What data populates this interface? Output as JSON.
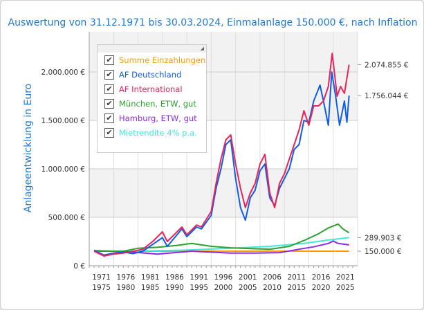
{
  "title": "Auswertung von 31.12.1971 bis 30.03.2024, Einmalanlage 150.000 €, nach Inflation",
  "chart_data": {
    "type": "line",
    "title": "Auswertung von 31.12.1971 bis 30.03.2024, Einmalanlage 150.000 €, nach Inflation",
    "ylabel": "Anlageentwicklung  in Euro",
    "ylim": [
      0,
      2250000
    ],
    "yticks": [
      {
        "v": 0,
        "label": "0 €"
      },
      {
        "v": 500000,
        "label": "500.000 €"
      },
      {
        "v": 1000000,
        "label": "1.000.000 €"
      },
      {
        "v": 1500000,
        "label": "1.500.000 €"
      },
      {
        "v": 2000000,
        "label": "2.000.000 €"
      }
    ],
    "xticks": [
      [
        "1971",
        "1975"
      ],
      [
        "1976",
        "1980"
      ],
      [
        "1981",
        "1985"
      ],
      [
        "1986",
        "1990"
      ],
      [
        "1991",
        "1995"
      ],
      [
        "1996",
        "2000"
      ],
      [
        "2001",
        "2005"
      ],
      [
        "2006",
        "2010"
      ],
      [
        "2011",
        "2015"
      ],
      [
        "2016",
        "2020"
      ],
      [
        "2021",
        "2025"
      ]
    ],
    "legend_placement": "top-left",
    "end_labels": [
      {
        "v": 2074855,
        "label": "2.074.855 €"
      },
      {
        "v": 1756044,
        "label": "1.756.044 €"
      },
      {
        "v": 289903,
        "label": "289.903 €"
      },
      {
        "v": 150000,
        "label": "150.000 €"
      }
    ],
    "series": [
      {
        "name": "Summe Einzahlungen",
        "color": "#ff9a00",
        "points": [
          [
            1972,
            150000
          ],
          [
            2024.25,
            150000
          ]
        ]
      },
      {
        "name": "Mietrendite 4% p.a.",
        "color": "#40e8d8",
        "points": [
          [
            1972,
            150000
          ],
          [
            1980,
            150000
          ],
          [
            1990,
            160000
          ],
          [
            2000,
            180000
          ],
          [
            2008,
            200000
          ],
          [
            2015,
            230000
          ],
          [
            2020,
            265000
          ],
          [
            2024.25,
            289903
          ]
        ]
      },
      {
        "name": "Hamburg, ETW, gut",
        "color": "#8a2be2",
        "points": [
          [
            1972,
            155000
          ],
          [
            1976,
            150000
          ],
          [
            1980,
            140000
          ],
          [
            1985,
            120000
          ],
          [
            1992,
            150000
          ],
          [
            1996,
            140000
          ],
          [
            2000,
            130000
          ],
          [
            2005,
            130000
          ],
          [
            2010,
            135000
          ],
          [
            2014,
            170000
          ],
          [
            2017,
            195000
          ],
          [
            2020,
            230000
          ],
          [
            2021,
            255000
          ],
          [
            2022,
            230000
          ],
          [
            2024.25,
            215000
          ]
        ]
      },
      {
        "name": "München, ETW, gut",
        "color": "#2ca02c",
        "points": [
          [
            1972,
            150000
          ],
          [
            1978,
            150000
          ],
          [
            1981,
            180000
          ],
          [
            1985,
            190000
          ],
          [
            1989,
            210000
          ],
          [
            1992,
            230000
          ],
          [
            1996,
            200000
          ],
          [
            2000,
            185000
          ],
          [
            2005,
            175000
          ],
          [
            2008,
            170000
          ],
          [
            2012,
            200000
          ],
          [
            2015,
            260000
          ],
          [
            2018,
            330000
          ],
          [
            2020,
            390000
          ],
          [
            2022,
            430000
          ],
          [
            2023,
            380000
          ],
          [
            2024.25,
            340000
          ]
        ]
      },
      {
        "name": "AF Deutschland",
        "color": "#0f5ce6",
        "points": [
          [
            1972,
            160000
          ],
          [
            1974,
            110000
          ],
          [
            1976,
            130000
          ],
          [
            1978,
            140000
          ],
          [
            1980,
            125000
          ],
          [
            1982,
            150000
          ],
          [
            1984,
            220000
          ],
          [
            1986,
            290000
          ],
          [
            1987,
            200000
          ],
          [
            1988,
            260000
          ],
          [
            1990,
            380000
          ],
          [
            1991,
            300000
          ],
          [
            1993,
            400000
          ],
          [
            1994,
            380000
          ],
          [
            1996,
            520000
          ],
          [
            1997,
            800000
          ],
          [
            1998,
            1000000
          ],
          [
            1999,
            1250000
          ],
          [
            2000,
            1300000
          ],
          [
            2001,
            900000
          ],
          [
            2002,
            600000
          ],
          [
            2003,
            470000
          ],
          [
            2004,
            700000
          ],
          [
            2005,
            780000
          ],
          [
            2006,
            980000
          ],
          [
            2007,
            1050000
          ],
          [
            2008,
            700000
          ],
          [
            2009,
            620000
          ],
          [
            2010,
            800000
          ],
          [
            2011,
            900000
          ],
          [
            2012,
            1000000
          ],
          [
            2013,
            1200000
          ],
          [
            2014,
            1250000
          ],
          [
            2015,
            1500000
          ],
          [
            2016,
            1480000
          ],
          [
            2017,
            1700000
          ],
          [
            2018.3,
            1864000
          ],
          [
            2019,
            1700000
          ],
          [
            2020,
            1450000
          ],
          [
            2020.7,
            2000000
          ],
          [
            2021.5,
            1750000
          ],
          [
            2022.3,
            1450000
          ],
          [
            2023.3,
            1700000
          ],
          [
            2023.8,
            1480000
          ],
          [
            2024.25,
            1756044
          ]
        ]
      },
      {
        "name": "AF International",
        "color": "#e8245a",
        "points": [
          [
            1972,
            150000
          ],
          [
            1974,
            100000
          ],
          [
            1976,
            120000
          ],
          [
            1978,
            130000
          ],
          [
            1980,
            150000
          ],
          [
            1982,
            170000
          ],
          [
            1984,
            250000
          ],
          [
            1986,
            350000
          ],
          [
            1987,
            250000
          ],
          [
            1988,
            300000
          ],
          [
            1990,
            400000
          ],
          [
            1991,
            320000
          ],
          [
            1993,
            420000
          ],
          [
            1994,
            400000
          ],
          [
            1996,
            560000
          ],
          [
            1997,
            850000
          ],
          [
            1998,
            1100000
          ],
          [
            1999,
            1300000
          ],
          [
            2000,
            1350000
          ],
          [
            2001,
            1050000
          ],
          [
            2002,
            800000
          ],
          [
            2003,
            600000
          ],
          [
            2004,
            750000
          ],
          [
            2005,
            850000
          ],
          [
            2006,
            1050000
          ],
          [
            2007,
            1150000
          ],
          [
            2008,
            750000
          ],
          [
            2009,
            600000
          ],
          [
            2010,
            850000
          ],
          [
            2011,
            950000
          ],
          [
            2012,
            1100000
          ],
          [
            2013,
            1250000
          ],
          [
            2014,
            1400000
          ],
          [
            2015,
            1600000
          ],
          [
            2016,
            1450000
          ],
          [
            2017,
            1650000
          ],
          [
            2018,
            1650000
          ],
          [
            2019,
            1700000
          ],
          [
            2020,
            1850000
          ],
          [
            2020.8,
            2193000
          ],
          [
            2021.8,
            1750000
          ],
          [
            2022.5,
            1850000
          ],
          [
            2023.3,
            1780000
          ],
          [
            2024.25,
            2074855
          ]
        ]
      }
    ]
  },
  "legend": {
    "items": [
      {
        "label": "Summe Einzahlungen",
        "color": "#ff9a00",
        "checked": true
      },
      {
        "label": "AF Deutschland",
        "color": "#0f5ce6",
        "checked": true
      },
      {
        "label": "AF International",
        "color": "#e8245a",
        "checked": true
      },
      {
        "label": "München, ETW, gut",
        "color": "#2ca02c",
        "checked": true
      },
      {
        "label": "Hamburg, ETW, gut",
        "color": "#8a2be2",
        "checked": true
      },
      {
        "label": "Mietrendite 4% p.a.",
        "color": "#40e8d8",
        "checked": true
      }
    ]
  }
}
